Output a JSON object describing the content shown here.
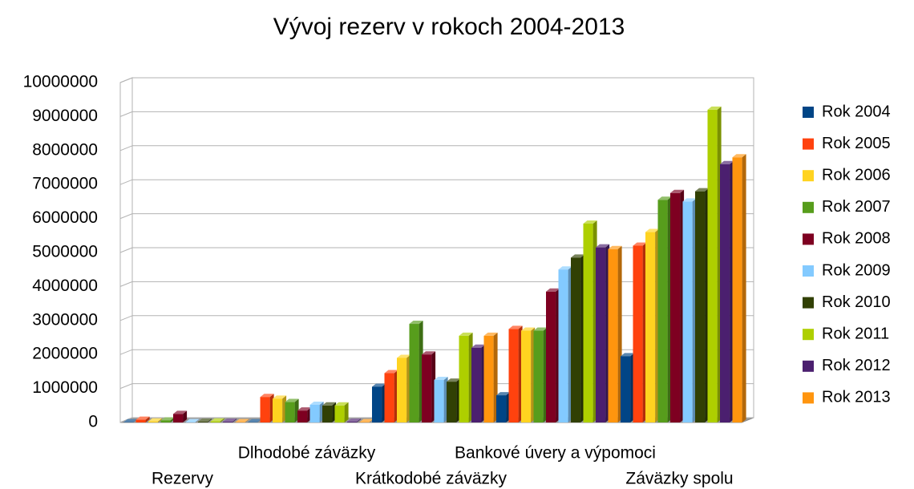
{
  "chart_data": {
    "type": "bar3d",
    "title": "Vývoj rezerv v rokoch 2004-2013",
    "categories": [
      "Rezervy",
      "Dlhodobé záväzky",
      "Krátkodobé záväzky",
      "Bankové úvery a výpomoci",
      "Záväzky spolu"
    ],
    "series": [
      {
        "name": "Rok 2004",
        "color": "#004586",
        "values": [
          5000,
          5000,
          1050000,
          800000,
          1950000
        ]
      },
      {
        "name": "Rok 2005",
        "color": "#ff420e",
        "values": [
          80000,
          750000,
          1450000,
          2750000,
          5200000
        ]
      },
      {
        "name": "Rok 2006",
        "color": "#ffd320",
        "values": [
          30000,
          700000,
          1900000,
          2700000,
          5600000
        ]
      },
      {
        "name": "Rok 2007",
        "color": "#579d1c",
        "values": [
          60000,
          600000,
          2900000,
          2700000,
          6550000
        ]
      },
      {
        "name": "Rok 2008",
        "color": "#7e0021",
        "values": [
          250000,
          350000,
          2000000,
          3850000,
          6750000
        ]
      },
      {
        "name": "Rok 2009",
        "color": "#83caff",
        "values": [
          10000,
          520000,
          1250000,
          4500000,
          6500000
        ]
      },
      {
        "name": "Rok 2010",
        "color": "#314004",
        "values": [
          20000,
          500000,
          1200000,
          4850000,
          6800000
        ]
      },
      {
        "name": "Rok 2011",
        "color": "#aecf00",
        "values": [
          30000,
          500000,
          2550000,
          5850000,
          9200000
        ]
      },
      {
        "name": "Rok 2012",
        "color": "#4b1f6f",
        "values": [
          20000,
          20000,
          2200000,
          5150000,
          7600000
        ]
      },
      {
        "name": "Rok 2013",
        "color": "#ff950e",
        "values": [
          10000,
          10000,
          2550000,
          5100000,
          7800000
        ]
      }
    ],
    "ylim": [
      0,
      10000000
    ],
    "yticks": [
      0,
      1000000,
      2000000,
      3000000,
      4000000,
      5000000,
      6000000,
      7000000,
      8000000,
      9000000,
      10000000
    ],
    "grid": true,
    "legend": "right"
  }
}
